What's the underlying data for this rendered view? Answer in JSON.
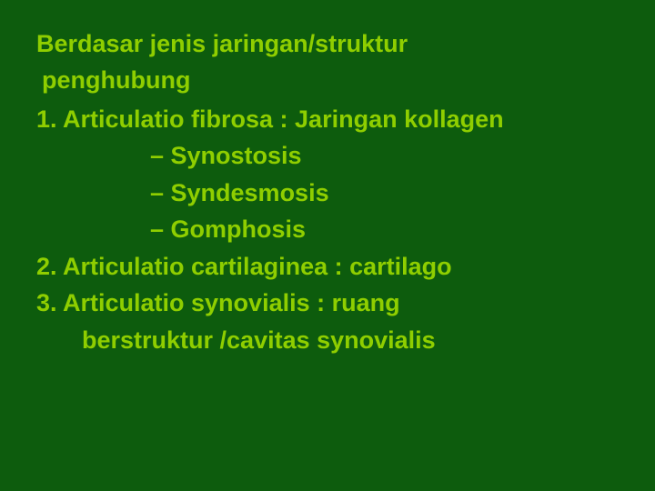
{
  "slide": {
    "background_color": "#0d5c0d",
    "text_color": "#8fce00",
    "font_family": "Arial",
    "font_size_pt": 27,
    "font_weight": "bold",
    "heading_line1": "Berdasar jenis jaringan/struktur",
    "heading_line2": " penghubung",
    "items": [
      {
        "type": "num",
        "text": "1.  Articulatio fibrosa : Jaringan kollagen"
      },
      {
        "type": "sub",
        "text": "– Synostosis"
      },
      {
        "type": "sub",
        "text": "– Syndesmosis"
      },
      {
        "type": "sub",
        "text": "– Gomphosis"
      },
      {
        "type": "num",
        "text": "2. Articulatio cartilaginea : cartilago"
      },
      {
        "type": "num",
        "text": "3. Articulatio synovialis : ruang"
      },
      {
        "type": "cont",
        "text": "berstruktur /cavitas synovialis"
      }
    ]
  }
}
